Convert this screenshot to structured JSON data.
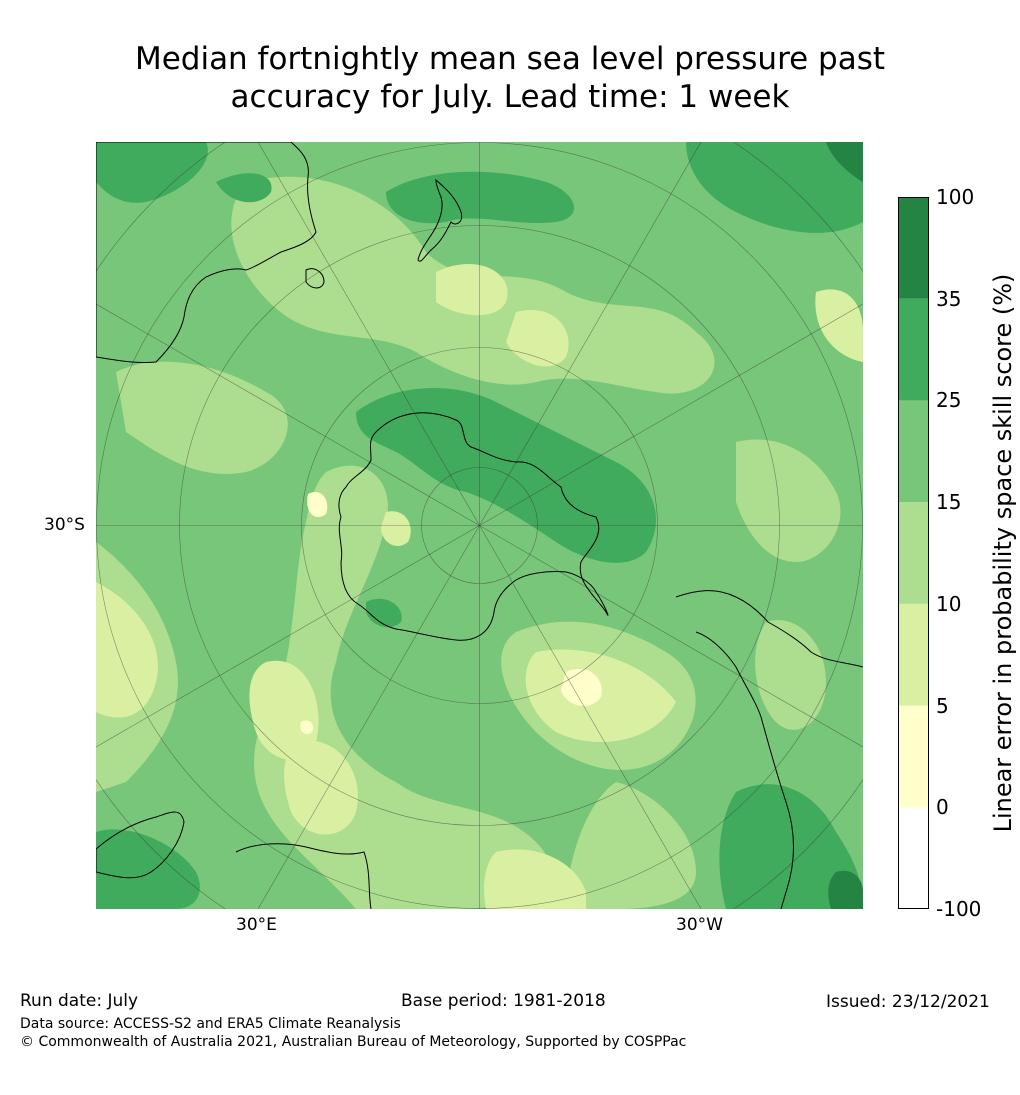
{
  "title_line1": "Median fortnightly mean sea level pressure past",
  "title_line2": "accuracy for July. Lead time: 1 week",
  "map": {
    "projection": "south polar stereographic",
    "tick_labels": {
      "left": "30°S",
      "bottom_left": "30°E",
      "bottom_right": "30°W"
    },
    "graticule": true,
    "coastlines": true
  },
  "colorbar": {
    "title": "Linear error in probability space skill score (%)",
    "levels": [
      "-100",
      "0",
      "5",
      "10",
      "15",
      "25",
      "35",
      "100"
    ],
    "colors": [
      "#ffffff",
      "#ffffcc",
      "#d9f0a3",
      "#addd8e",
      "#78c679",
      "#41ab5d",
      "#238443"
    ]
  },
  "footer": {
    "run_date": "Run date: July",
    "base_period": "Base period: 1981-2018",
    "issued": "Issued: 23/12/2021",
    "data_source": "Data source: ACCESS-S2 and ERA5 Climate Reanalysis",
    "copyright": "© Commonwealth of Australia 2021, Australian Bureau of Meteorology, Supported by COSPPac"
  }
}
